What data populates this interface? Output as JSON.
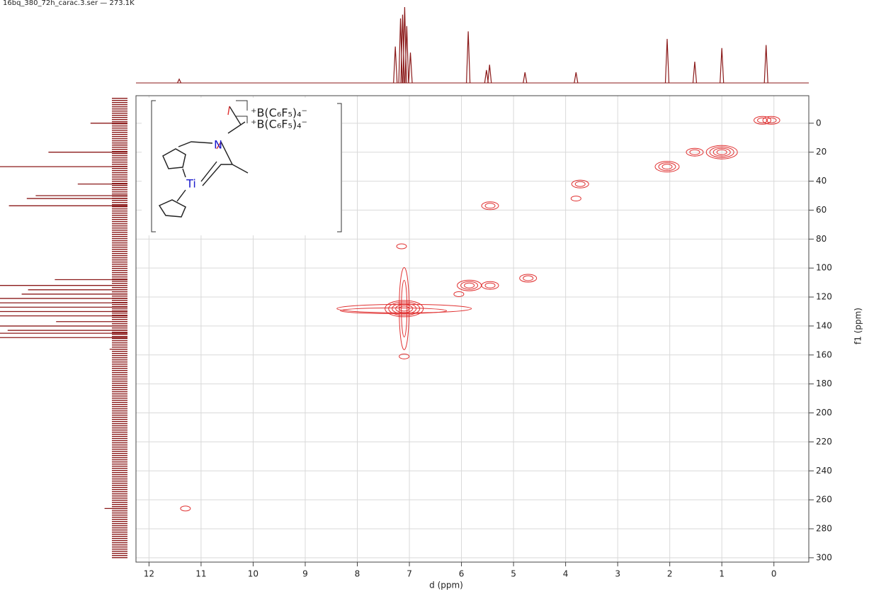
{
  "chart_data": {
    "type": "nmr2d",
    "title": "16bq_380_72h_carac.3.ser — 273.1K",
    "x_label": "d (ppm)",
    "y_label": "f1 (ppm)",
    "xlim": [
      12.25,
      -0.67
    ],
    "ylim": [
      -19,
      303
    ],
    "xticks": [
      12,
      11,
      10,
      9,
      8,
      7,
      6,
      5,
      4,
      3,
      2,
      1,
      0
    ],
    "yticks": [
      0,
      20,
      40,
      60,
      80,
      100,
      120,
      140,
      160,
      180,
      200,
      220,
      240,
      260,
      280,
      300
    ],
    "grid": true,
    "spectrum_color": "#8b1a1a",
    "contour_color": "#e03030",
    "f2_projection": {
      "x": [
        11.42,
        7.27,
        7.17,
        7.13,
        7.09,
        7.05,
        6.98,
        5.87,
        5.52,
        5.46,
        4.78,
        3.8,
        2.05,
        1.52,
        1.0,
        0.15
      ],
      "values": [
        5,
        48,
        85,
        90,
        100,
        75,
        40,
        68,
        17,
        24,
        14,
        14,
        58,
        28,
        46,
        50
      ]
    },
    "f1_projection": {
      "y": [
        0,
        15,
        20,
        30,
        42,
        50,
        52,
        57,
        108,
        112,
        115,
        118,
        121,
        124,
        127,
        130,
        133,
        137,
        140,
        143,
        145,
        148,
        156,
        266
      ],
      "values": [
        29,
        11,
        62,
        100,
        39,
        72,
        79,
        93,
        57,
        100,
        78,
        83,
        100,
        100,
        100,
        100,
        100,
        56,
        100,
        94,
        100,
        100,
        14,
        18
      ]
    },
    "cross_peaks": {
      "x": [
        0.22,
        0.05,
        1.52,
        1.0,
        2.05,
        3.72,
        3.8,
        5.45,
        4.72,
        5.45,
        5.85,
        6.05,
        7.1,
        7.15,
        7.1,
        11.3
      ],
      "y": [
        -2,
        -2,
        20,
        20,
        30,
        42,
        52,
        57,
        107,
        112,
        112,
        118,
        128,
        85,
        161,
        266
      ],
      "sizes": [
        2,
        2,
        2,
        4,
        3,
        2,
        1,
        2,
        2,
        2,
        3,
        1,
        5,
        1,
        1,
        1
      ]
    },
    "structure": {
      "anion": "⁺B(C₆F₅)₄⁻",
      "atoms": [
        "N",
        "Ti"
      ]
    }
  }
}
